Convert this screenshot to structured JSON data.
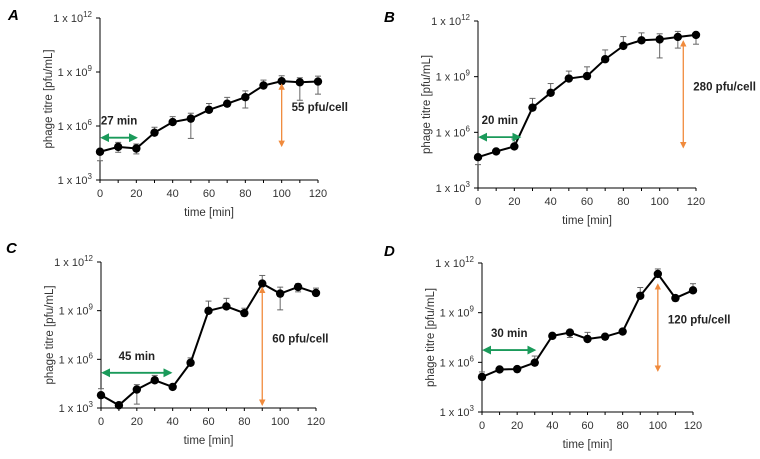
{
  "chart_data": [
    {
      "type": "line",
      "panel_label": "A",
      "xlabel": "time [min]",
      "ylabel": "phage titre [pfu/mL]",
      "yscale": "log10",
      "ylim_exp": [
        3,
        12
      ],
      "y_tick_prefix": "1 x 10",
      "y_tick_exponents": [
        "3",
        "6",
        "9",
        "12"
      ],
      "x_ticks": [
        0,
        20,
        40,
        60,
        80,
        100,
        120
      ],
      "x": [
        0,
        10,
        20,
        30,
        40,
        50,
        60,
        70,
        80,
        90,
        100,
        110,
        120
      ],
      "log10_values": [
        4.57,
        4.84,
        4.75,
        5.63,
        6.22,
        6.41,
        6.9,
        7.24,
        7.6,
        8.25,
        8.49,
        8.43,
        8.47
      ],
      "log10_err_up": [
        0.1,
        0.25,
        0.25,
        0.3,
        0.3,
        0.3,
        0.35,
        0.35,
        0.35,
        0.3,
        0.3,
        0.25,
        0.3
      ],
      "log10_err_down": [
        0.5,
        0.3,
        0.3,
        0.1,
        0.1,
        1.1,
        0.1,
        0.1,
        0.6,
        0.1,
        0.1,
        1.0,
        0.7
      ],
      "latent": {
        "label": "27 min",
        "x_from": 0,
        "x_to": 21,
        "y_exp": 5.35
      },
      "burst": {
        "label": "55 pfu/cell",
        "x": 100,
        "y_from_exp": 8.3,
        "y_to_exp": 4.9
      }
    },
    {
      "type": "line",
      "panel_label": "B",
      "xlabel": "time [min]",
      "ylabel": "phage titre [pfu/mL]",
      "yscale": "log10",
      "ylim_exp": [
        3,
        12
      ],
      "y_tick_prefix": "1 x 10",
      "y_tick_exponents": [
        "3",
        "6",
        "9",
        "12"
      ],
      "x_ticks": [
        0,
        20,
        40,
        60,
        80,
        100,
        120
      ],
      "x": [
        0,
        10,
        20,
        30,
        40,
        50,
        60,
        70,
        80,
        90,
        100,
        110,
        120
      ],
      "log10_values": [
        4.66,
        4.97,
        5.24,
        7.33,
        8.13,
        8.9,
        9.03,
        9.94,
        10.66,
        10.96,
        11.01,
        11.14,
        11.25
      ],
      "log10_err_up": [
        0.1,
        0.1,
        0.4,
        0.5,
        0.5,
        0.4,
        0.5,
        0.5,
        0.5,
        0.4,
        0.3,
        0.3,
        0.1
      ],
      "log10_err_down": [
        0.4,
        0.1,
        0.1,
        0.1,
        0.1,
        0.1,
        0.1,
        0.1,
        0.1,
        0.1,
        1.0,
        0.6,
        0.5
      ],
      "latent": {
        "label": "20 min",
        "x_from": 0,
        "x_to": 24,
        "y_exp": 5.74
      },
      "burst": {
        "label": "280 pfu/cell",
        "x": 113,
        "y_from_exp": 10.9,
        "y_to_exp": 5.2
      }
    },
    {
      "type": "line",
      "panel_label": "C",
      "xlabel": "time [min]",
      "ylabel": "phage titre [pfu/mL]",
      "yscale": "log10",
      "ylim_exp": [
        3,
        12
      ],
      "y_tick_prefix": "1 x 10",
      "y_tick_exponents": [
        "3",
        "6",
        "9",
        "12"
      ],
      "x_ticks": [
        0,
        20,
        40,
        60,
        80,
        100,
        120
      ],
      "x": [
        0,
        10,
        20,
        30,
        40,
        50,
        60,
        70,
        80,
        90,
        100,
        110,
        120
      ],
      "log10_values": [
        3.79,
        3.17,
        4.14,
        4.71,
        4.3,
        5.79,
        8.99,
        9.26,
        8.85,
        10.67,
        10.05,
        10.46,
        10.09
      ],
      "log10_err_up": [
        0.4,
        0.1,
        0.3,
        0.3,
        0.1,
        0.3,
        0.6,
        0.5,
        0.3,
        0.5,
        0.4,
        0.2,
        0.3
      ],
      "log10_err_down": [
        0.1,
        0.1,
        0.9,
        0.1,
        0.1,
        0.1,
        0.1,
        0.1,
        0.1,
        0.1,
        1.0,
        0.3,
        0.1
      ],
      "latent": {
        "label": "45 min",
        "x_from": 0,
        "x_to": 40,
        "y_exp": 5.17
      },
      "burst": {
        "label": "60 pfu/cell",
        "x": 90,
        "y_from_exp": 10.4,
        "y_to_exp": 3.2
      }
    },
    {
      "type": "line",
      "panel_label": "D",
      "xlabel": "time [min]",
      "ylabel": "phage titre [pfu/mL]",
      "yscale": "log10",
      "ylim_exp": [
        3,
        12
      ],
      "y_tick_prefix": "1 x 10",
      "y_tick_exponents": [
        "3",
        "6",
        "9",
        "12"
      ],
      "x_ticks": [
        0,
        20,
        40,
        60,
        80,
        100,
        120
      ],
      "x": [
        0,
        10,
        20,
        30,
        40,
        50,
        60,
        70,
        80,
        90,
        100,
        110,
        120
      ],
      "log10_values": [
        5.12,
        5.57,
        5.59,
        5.98,
        7.6,
        7.8,
        7.41,
        7.55,
        7.86,
        10.02,
        11.34,
        9.88,
        10.35
      ],
      "log10_err_up": [
        0.3,
        0.1,
        0.1,
        0.4,
        0.1,
        0.1,
        0.4,
        0.1,
        0.1,
        0.5,
        0.3,
        0.1,
        0.4
      ],
      "log10_err_down": [
        0.1,
        0.1,
        0.1,
        0.1,
        0.1,
        0.3,
        0.1,
        0.1,
        0.1,
        0.1,
        0.1,
        0.1,
        0.1
      ],
      "latent": {
        "label": "30 min",
        "x_from": 0,
        "x_to": 31,
        "y_exp": 6.74
      },
      "burst": {
        "label": "120 pfu/cell",
        "x": 100,
        "y_from_exp": 10.7,
        "y_to_exp": 5.5
      }
    }
  ],
  "colors": {
    "line": "#000000",
    "errorbar": "#666666",
    "latent_arrow": "#1a9a5a",
    "burst_arrow": "#f08a3c",
    "axis": "#000000"
  }
}
